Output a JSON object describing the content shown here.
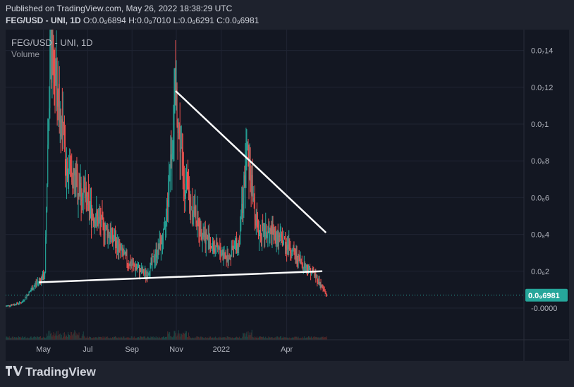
{
  "header": {
    "published": "Published on TradingView.com, May 26, 2022 18:38:29 UTC",
    "symbol_line": "FEG/USD - UNI, 1D",
    "open": "O:0.0₉6894",
    "high": "H:0.0₉7010",
    "low": "L:0.0₉6291",
    "close": "C:0.0₉6981"
  },
  "legend": {
    "symbol": "FEG/USD - UNI, 1D",
    "volume": "Volume"
  },
  "footer": {
    "brand": "TradingView",
    "logo": "tradingview-logo"
  },
  "colors": {
    "up": "#26a69a",
    "down": "#ef5350",
    "background": "#131722",
    "line": "#ffffff",
    "last_price": "#26a69a"
  },
  "chart_data": {
    "type": "candlestick",
    "x_ticks": [
      "May",
      "Jul",
      "Sep",
      "Nov",
      "2022",
      "Apr"
    ],
    "y_ticks": [
      "0.0₇14",
      "0.0₇12",
      "0.0₇1",
      "0.0₈8",
      "0.0₈6",
      "0.0₈4",
      "0.0₈2",
      "-0.0000"
    ],
    "last_price_label": "0.0₉6981",
    "approx_close_series_1e-8": [
      {
        "t": "Mar 10",
        "v": 0.1
      },
      {
        "t": "Apr 1",
        "v": 0.3
      },
      {
        "t": "Apr 20",
        "v": 1.3
      },
      {
        "t": "May 3",
        "v": 1.8
      },
      {
        "t": "May 10",
        "v": 14.0
      },
      {
        "t": "May 20",
        "v": 12.0
      },
      {
        "t": "Jun 1",
        "v": 8.0
      },
      {
        "t": "Jun 20",
        "v": 6.5
      },
      {
        "t": "Jul 10",
        "v": 5.0
      },
      {
        "t": "Aug 1",
        "v": 4.0
      },
      {
        "t": "Aug 25",
        "v": 2.5
      },
      {
        "t": "Sep 20",
        "v": 1.8
      },
      {
        "t": "Oct 15",
        "v": 4.0
      },
      {
        "t": "Oct 30",
        "v": 11.8
      },
      {
        "t": "Nov 10",
        "v": 7.0
      },
      {
        "t": "Dec 1",
        "v": 4.5
      },
      {
        "t": "Dec 20",
        "v": 3.3
      },
      {
        "t": "Jan 10",
        "v": 2.8
      },
      {
        "t": "Jan 25",
        "v": 3.5
      },
      {
        "t": "Feb 5",
        "v": 8.5
      },
      {
        "t": "Feb 20",
        "v": 4.2
      },
      {
        "t": "Mar 10",
        "v": 4.0
      },
      {
        "t": "Apr 1",
        "v": 3.5
      },
      {
        "t": "Apr 20",
        "v": 2.5
      },
      {
        "t": "May 10",
        "v": 1.8
      },
      {
        "t": "May 26",
        "v": 0.7
      }
    ],
    "trendlines": [
      {
        "name": "upper",
        "from": {
          "t": "Oct 30",
          "v": 11.8
        },
        "to": {
          "t": "May 25",
          "v": 4.1
        }
      },
      {
        "name": "lower",
        "from": {
          "t": "Apr 25",
          "v": 1.4
        },
        "to": {
          "t": "May 20",
          "v": 2.0
        }
      }
    ]
  }
}
